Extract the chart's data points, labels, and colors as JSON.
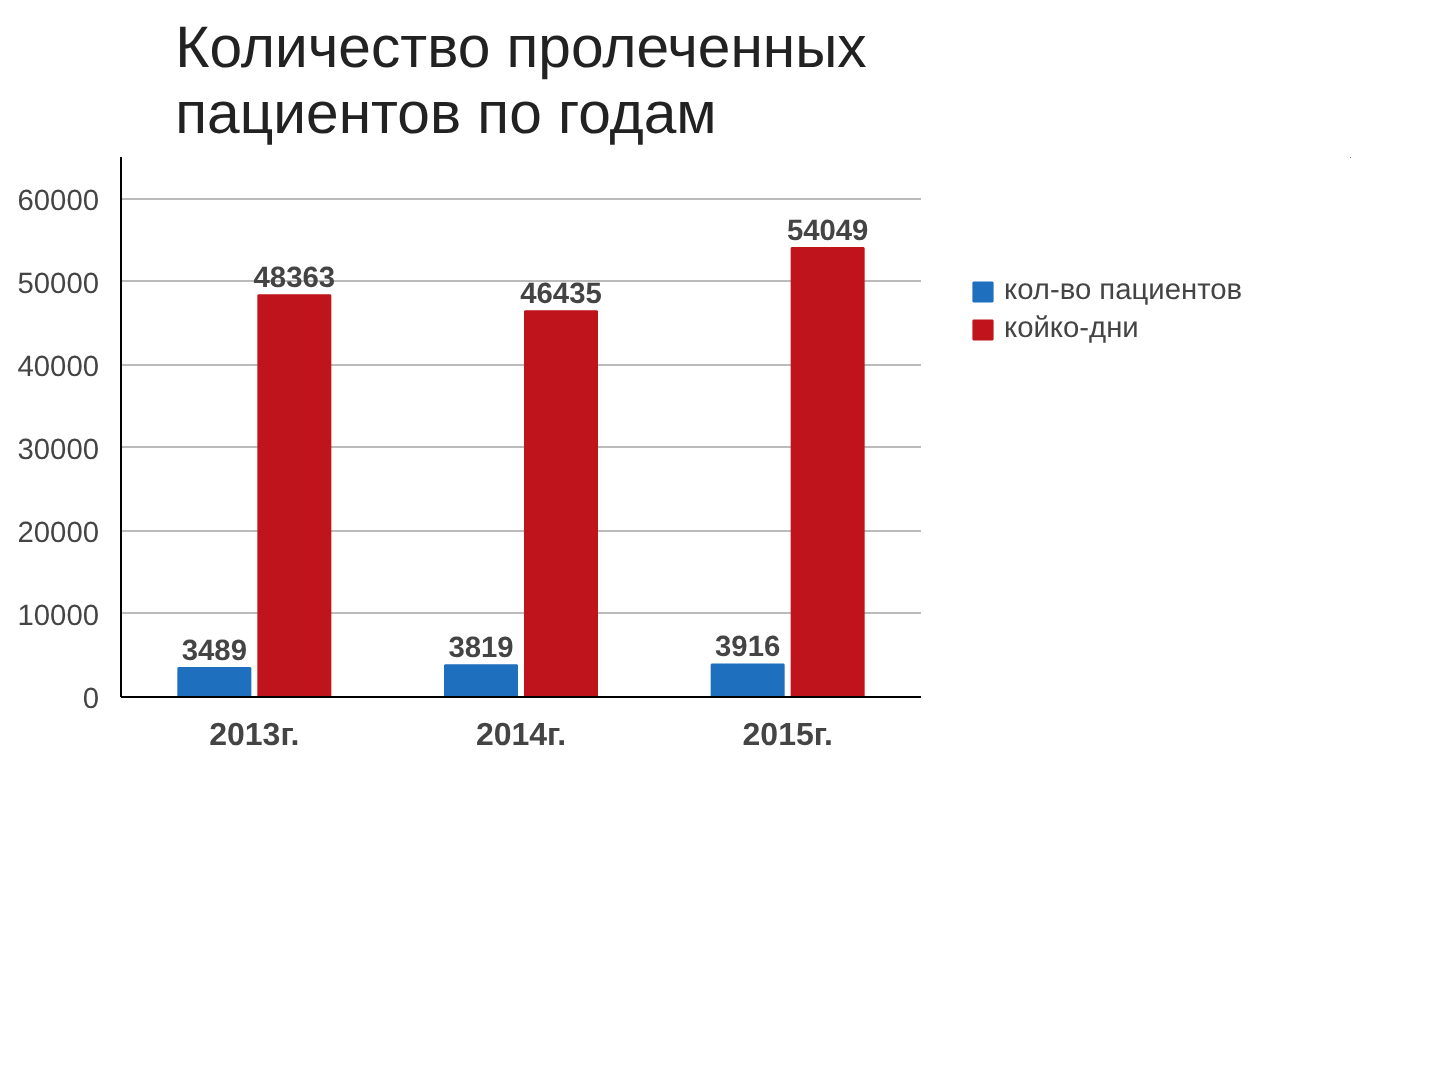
{
  "chart_data": {
    "type": "bar",
    "title": "Количество пролеченных\nпациентов по годам",
    "categories": [
      "2013г.",
      "2014г.",
      "2015г."
    ],
    "series": [
      {
        "name": "кол-во пациентов",
        "color": "#1f6fbf",
        "values": [
          3489,
          3819,
          3916
        ]
      },
      {
        "name": "койко-дни",
        "color": "#c0141c",
        "values": [
          48363,
          46435,
          54049
        ]
      }
    ],
    "ylim": [
      0,
      65000
    ],
    "yticks": [
      0,
      10000,
      20000,
      30000,
      40000,
      50000,
      60000
    ],
    "grid": "y",
    "legend": "right",
    "data_labels": true
  }
}
